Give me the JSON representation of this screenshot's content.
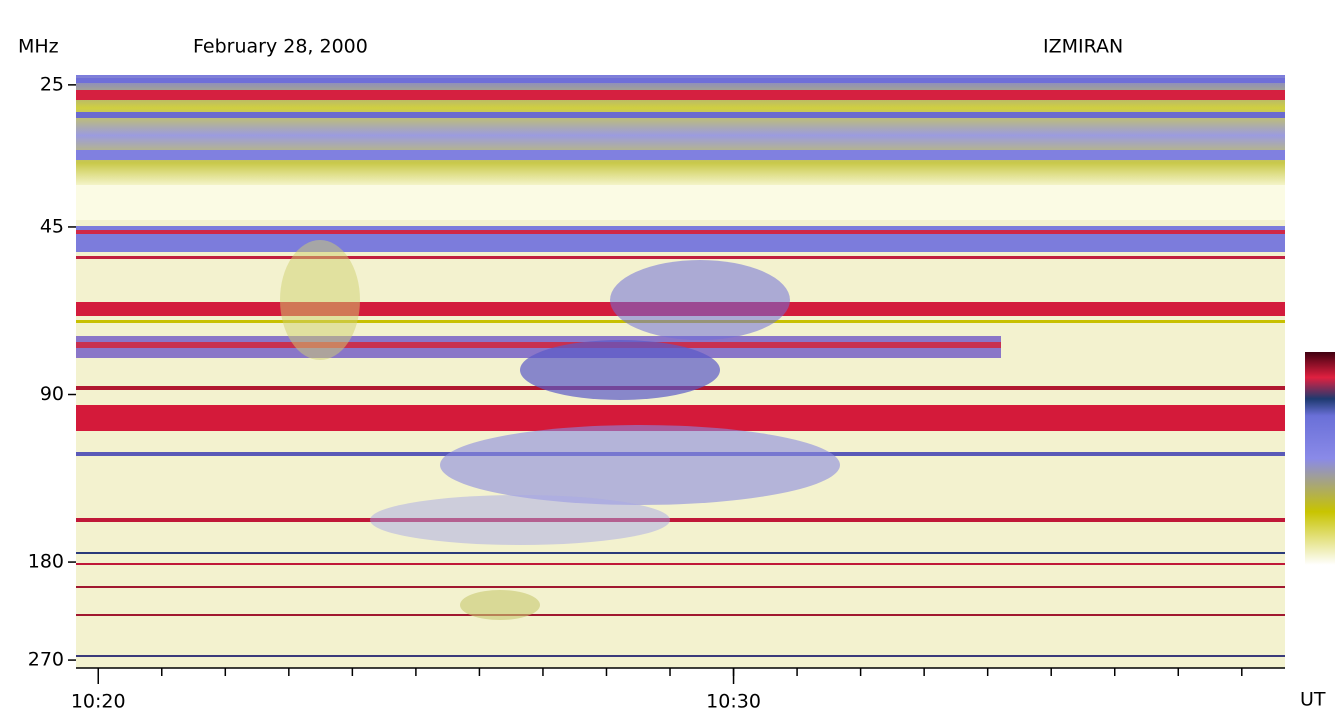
{
  "chart_data": {
    "type": "spectrogram",
    "title": "February 28, 2000",
    "source": "IZMIRAN",
    "y_label": "MHz",
    "x_label": "UT",
    "yscale": "log",
    "y_inverted": true,
    "ylim": [
      24,
      279
    ],
    "yticks": [
      25,
      45,
      90,
      180,
      270
    ],
    "xlim": [
      619.65,
      638.68
    ],
    "xticks": [
      {
        "value": 620,
        "label": "10:20"
      },
      {
        "value": 630,
        "label": "10:30"
      }
    ],
    "x_minor_ticks": [
      620,
      621,
      622,
      623,
      624,
      625,
      626,
      627,
      628,
      629,
      630,
      631,
      632,
      633,
      634,
      635,
      636,
      637,
      638
    ]
  }
}
